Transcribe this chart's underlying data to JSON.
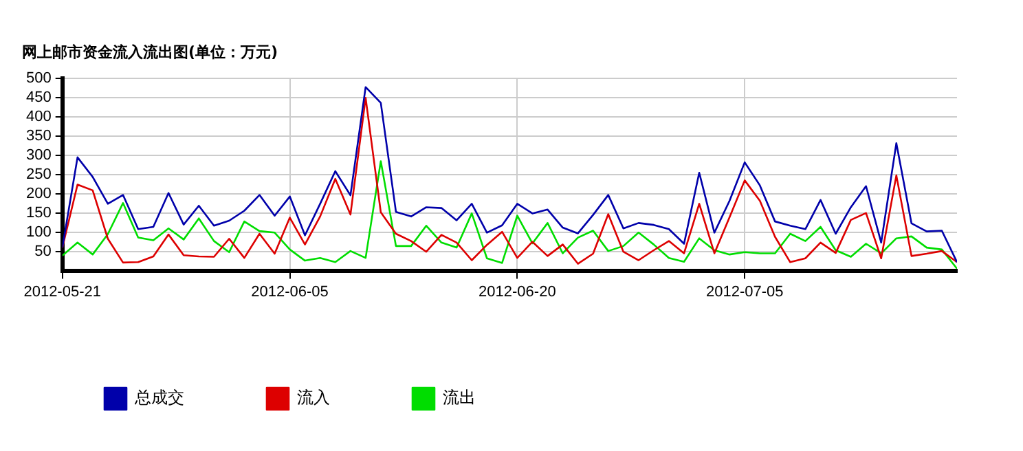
{
  "chart_data": {
    "type": "line",
    "title": "网上邮市资金流入流出图(单位：万元)",
    "x": [
      "2012-05-21",
      "2012-05-22",
      "2012-05-23",
      "2012-05-24",
      "2012-05-25",
      "2012-05-26",
      "2012-05-27",
      "2012-05-28",
      "2012-05-29",
      "2012-05-30",
      "2012-05-31",
      "2012-06-01",
      "2012-06-02",
      "2012-06-03",
      "2012-06-04",
      "2012-06-05",
      "2012-06-06",
      "2012-06-07",
      "2012-06-08",
      "2012-06-09",
      "2012-06-10",
      "2012-06-11",
      "2012-06-12",
      "2012-06-13",
      "2012-06-14",
      "2012-06-15",
      "2012-06-16",
      "2012-06-17",
      "2012-06-18",
      "2012-06-19",
      "2012-06-20",
      "2012-06-21",
      "2012-06-22",
      "2012-06-23",
      "2012-06-24",
      "2012-06-25",
      "2012-06-26",
      "2012-06-27",
      "2012-06-28",
      "2012-06-29",
      "2012-06-30",
      "2012-07-01",
      "2012-07-02",
      "2012-07-03",
      "2012-07-04",
      "2012-07-05",
      "2012-07-06",
      "2012-07-07",
      "2012-07-08",
      "2012-07-09",
      "2012-07-10",
      "2012-07-11",
      "2012-07-12",
      "2012-07-13",
      "2012-07-14",
      "2012-07-15",
      "2012-07-16",
      "2012-07-17",
      "2012-07-18",
      "2012-07-19"
    ],
    "series": [
      {
        "name": "总成交",
        "color": "#0000aa",
        "values": [
          60,
          295,
          244,
          174,
          197,
          108,
          114,
          202,
          120,
          169,
          117,
          130,
          156,
          197,
          143,
          193,
          92,
          174,
          259,
          196,
          478,
          437,
          153,
          141,
          165,
          163,
          131,
          174,
          99,
          118,
          174,
          149,
          159,
          112,
          97,
          145,
          197,
          110,
          124,
          119,
          108,
          70,
          255,
          99,
          182,
          282,
          222,
          128,
          117,
          108,
          184,
          96,
          165,
          220,
          73,
          332,
          123,
          102,
          104,
          22
        ]
      },
      {
        "name": "流入",
        "color": "#dd0000",
        "values": [
          60,
          224,
          209,
          83,
          21,
          22,
          37,
          94,
          40,
          37,
          36,
          83,
          33,
          96,
          44,
          138,
          68,
          141,
          239,
          146,
          450,
          152,
          96,
          77,
          49,
          93,
          73,
          27,
          67,
          101,
          33,
          75,
          38,
          68,
          18,
          44,
          147,
          49,
          27,
          53,
          77,
          45,
          174,
          45,
          139,
          235,
          182,
          88,
          22,
          32,
          73,
          46,
          132,
          150,
          32,
          248,
          38,
          44,
          51,
          22
        ]
      },
      {
        "name": "流出",
        "color": "#00dd00",
        "values": [
          39,
          73,
          42,
          95,
          176,
          86,
          79,
          110,
          81,
          136,
          77,
          48,
          128,
          103,
          99,
          55,
          26,
          33,
          22,
          51,
          33,
          285,
          64,
          64,
          117,
          73,
          60,
          149,
          32,
          20,
          143,
          71,
          124,
          45,
          86,
          104,
          51,
          64,
          99,
          68,
          33,
          23,
          84,
          53,
          42,
          48,
          45,
          45,
          96,
          77,
          114,
          53,
          36,
          70,
          45,
          84,
          89,
          60,
          55,
          5
        ]
      }
    ],
    "xlim": [
      "2012-05-21",
      "2012-07-19"
    ],
    "xticks": [
      "2012-05-21",
      "2012-06-05",
      "2012-06-20",
      "2012-07-05"
    ],
    "ylim": [
      0,
      500
    ],
    "yticks": [
      50,
      100,
      150,
      200,
      250,
      300,
      350,
      400,
      450,
      500
    ],
    "grid": true,
    "legend": "bottom",
    "marker": "none",
    "line_style": "solid"
  }
}
